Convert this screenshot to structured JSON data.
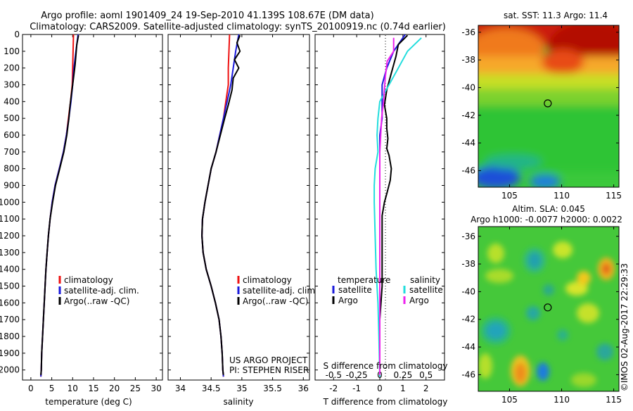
{
  "header": {
    "line1": "Argo profile: aoml 1901409_24 19-Sep-2010 41.139S 108.67E (DM data)",
    "line2": "Climatology: CARS2009. Satellite-adjusted climatology: synTS_20100919.nc (0.74d earlier)"
  },
  "depth_axis": {
    "range": [
      0,
      2060
    ],
    "ticks": [
      0,
      100,
      200,
      300,
      400,
      500,
      600,
      700,
      800,
      900,
      1000,
      1100,
      1200,
      1300,
      1400,
      1500,
      1600,
      1700,
      1800,
      1900,
      2000
    ]
  },
  "colors": {
    "red": "#ee1111",
    "blue": "#1a1adc",
    "black": "#000000",
    "cyan": "#22dddd",
    "magenta": "#ee22ee"
  },
  "chart_data": [
    {
      "type": "line",
      "id": "temperature",
      "xlabel": "temperature (deg C)",
      "xlim": [
        -2,
        31.5
      ],
      "xticks": [
        0,
        5,
        10,
        15,
        20,
        25,
        30
      ],
      "xtick_labels": [
        "0",
        "5",
        "10",
        "15",
        "20",
        "25",
        "30"
      ],
      "legend": [
        "climatology",
        "satellite-adj. clim.",
        "Argo(..raw -QC)"
      ],
      "series": [
        {
          "name": "climatology",
          "color": "red",
          "points": [
            [
              10.2,
              0
            ],
            [
              10.1,
              100
            ],
            [
              10.0,
              200
            ],
            [
              9.9,
              300
            ],
            [
              9.5,
              400
            ],
            [
              9.0,
              500
            ],
            [
              8.5,
              600
            ],
            [
              7.8,
              700
            ],
            [
              6.8,
              800
            ],
            [
              5.8,
              900
            ],
            [
              5.1,
              1000
            ],
            [
              4.6,
              1100
            ],
            [
              4.2,
              1200
            ],
            [
              3.9,
              1300
            ],
            [
              3.6,
              1400
            ],
            [
              3.4,
              1500
            ],
            [
              3.2,
              1600
            ],
            [
              3.0,
              1700
            ],
            [
              2.8,
              1800
            ],
            [
              2.6,
              1900
            ],
            [
              2.5,
              2000
            ],
            [
              2.4,
              2040
            ]
          ]
        },
        {
          "name": "satellite-adj. clim.",
          "color": "blue",
          "points": [
            [
              11.3,
              0
            ],
            [
              10.8,
              100
            ],
            [
              10.3,
              200
            ],
            [
              10.0,
              300
            ],
            [
              9.6,
              400
            ],
            [
              9.1,
              500
            ],
            [
              8.5,
              600
            ],
            [
              7.8,
              700
            ],
            [
              6.8,
              800
            ],
            [
              5.8,
              900
            ],
            [
              5.1,
              1000
            ],
            [
              4.6,
              1100
            ],
            [
              4.2,
              1200
            ],
            [
              3.9,
              1300
            ],
            [
              3.6,
              1400
            ],
            [
              3.4,
              1500
            ],
            [
              3.2,
              1600
            ],
            [
              3.0,
              1700
            ],
            [
              2.8,
              1800
            ],
            [
              2.6,
              1900
            ],
            [
              2.5,
              2000
            ],
            [
              2.4,
              2040
            ]
          ]
        },
        {
          "name": "Argo(..raw -QC)",
          "color": "black",
          "points": [
            [
              11.4,
              5
            ],
            [
              11.0,
              60
            ],
            [
              10.8,
              120
            ],
            [
              10.6,
              180
            ],
            [
              10.2,
              260
            ],
            [
              9.8,
              340
            ],
            [
              9.4,
              420
            ],
            [
              9.1,
              500
            ],
            [
              8.6,
              600
            ],
            [
              7.9,
              700
            ],
            [
              6.9,
              800
            ],
            [
              5.9,
              900
            ],
            [
              5.2,
              1000
            ],
            [
              4.6,
              1100
            ],
            [
              4.2,
              1200
            ],
            [
              3.9,
              1300
            ],
            [
              3.6,
              1400
            ],
            [
              3.4,
              1500
            ],
            [
              3.2,
              1600
            ],
            [
              3.0,
              1700
            ],
            [
              2.8,
              1800
            ],
            [
              2.6,
              1900
            ],
            [
              2.5,
              2000
            ],
            [
              2.4,
              2030
            ]
          ]
        }
      ]
    },
    {
      "type": "line",
      "id": "salinity",
      "xlabel": "salinity",
      "xlim": [
        33.8,
        36.1
      ],
      "xticks": [
        34,
        34.5,
        35,
        35.5,
        36
      ],
      "xtick_labels": [
        "34",
        "34.5",
        "35",
        "35.5",
        "36"
      ],
      "legend": [
        "climatology",
        "satellite-adj. clim.",
        "Argo(..raw -QC)"
      ],
      "annotations": [
        "US ARGO PROJECT",
        "PI: STEPHEN RISER"
      ],
      "series": [
        {
          "name": "climatology",
          "color": "red",
          "points": [
            [
              34.8,
              0
            ],
            [
              34.79,
              100
            ],
            [
              34.78,
              200
            ],
            [
              34.78,
              300
            ],
            [
              34.74,
              400
            ],
            [
              34.7,
              500
            ],
            [
              34.64,
              600
            ],
            [
              34.58,
              700
            ],
            [
              34.5,
              800
            ],
            [
              34.45,
              900
            ],
            [
              34.4,
              1000
            ],
            [
              34.36,
              1100
            ],
            [
              34.35,
              1200
            ],
            [
              34.37,
              1300
            ],
            [
              34.42,
              1400
            ],
            [
              34.5,
              1500
            ],
            [
              34.57,
              1600
            ],
            [
              34.63,
              1700
            ],
            [
              34.66,
              1800
            ],
            [
              34.68,
              1900
            ],
            [
              34.69,
              2000
            ],
            [
              34.7,
              2040
            ]
          ]
        },
        {
          "name": "satellite-adj. clim.",
          "color": "blue",
          "points": [
            [
              34.95,
              0
            ],
            [
              34.9,
              100
            ],
            [
              34.86,
              200
            ],
            [
              34.82,
              300
            ],
            [
              34.76,
              400
            ],
            [
              34.7,
              500
            ],
            [
              34.64,
              600
            ],
            [
              34.58,
              700
            ],
            [
              34.5,
              800
            ],
            [
              34.45,
              900
            ],
            [
              34.4,
              1000
            ],
            [
              34.36,
              1100
            ],
            [
              34.35,
              1200
            ],
            [
              34.37,
              1300
            ],
            [
              34.42,
              1400
            ],
            [
              34.5,
              1500
            ],
            [
              34.57,
              1600
            ],
            [
              34.63,
              1700
            ],
            [
              34.66,
              1800
            ],
            [
              34.68,
              1900
            ],
            [
              34.69,
              2000
            ],
            [
              34.7,
              2040
            ]
          ]
        },
        {
          "name": "Argo(..raw -QC)",
          "color": "black",
          "points": [
            [
              34.97,
              5
            ],
            [
              34.92,
              50
            ],
            [
              34.97,
              100
            ],
            [
              34.88,
              150
            ],
            [
              34.95,
              200
            ],
            [
              34.86,
              260
            ],
            [
              34.84,
              330
            ],
            [
              34.78,
              420
            ],
            [
              34.72,
              500
            ],
            [
              34.65,
              600
            ],
            [
              34.58,
              700
            ],
            [
              34.5,
              800
            ],
            [
              34.45,
              900
            ],
            [
              34.4,
              1000
            ],
            [
              34.36,
              1100
            ],
            [
              34.35,
              1200
            ],
            [
              34.37,
              1300
            ],
            [
              34.42,
              1400
            ],
            [
              34.5,
              1500
            ],
            [
              34.57,
              1600
            ],
            [
              34.63,
              1700
            ],
            [
              34.66,
              1800
            ],
            [
              34.68,
              1900
            ],
            [
              34.69,
              2000
            ],
            [
              34.7,
              2030
            ]
          ]
        }
      ]
    },
    {
      "type": "line",
      "id": "difference",
      "xlabel": "T difference from climatology",
      "xlabel2": "S difference from climatology",
      "xlim": [
        -2.8,
        2.8
      ],
      "xticks": [
        -2,
        -1,
        0,
        1,
        2
      ],
      "xtick_labels": [
        "-2",
        "-1",
        "0",
        "1",
        "2"
      ],
      "s_xticks": [
        -0.5,
        -0.25,
        0,
        0.25,
        0.5
      ],
      "s_xtick_labels": [
        "-0.5",
        "-0.25",
        "0",
        "0.25",
        "0.5"
      ],
      "legend_headers": [
        "temperature",
        "salinity"
      ],
      "legend_temperature": [
        "satellite",
        "Argo"
      ],
      "legend_salinity": [
        "satellite",
        "Argo"
      ],
      "series": [
        {
          "name": "temperature satellite",
          "color": "blue",
          "points": [
            [
              1.1,
              0
            ],
            [
              0.6,
              100
            ],
            [
              0.3,
              200
            ],
            [
              0.1,
              300
            ],
            [
              0.1,
              400
            ],
            [
              0.1,
              500
            ],
            [
              0.0,
              600
            ],
            [
              0.0,
              700
            ],
            [
              0.0,
              800
            ],
            [
              0.0,
              900
            ],
            [
              0.0,
              1000
            ],
            [
              0.0,
              1200
            ],
            [
              0.0,
              1500
            ],
            [
              0.0,
              1800
            ],
            [
              0.0,
              2040
            ]
          ]
        },
        {
          "name": "temperature Argo",
          "color": "black",
          "points": [
            [
              1.2,
              5
            ],
            [
              0.8,
              60
            ],
            [
              0.7,
              130
            ],
            [
              0.5,
              230
            ],
            [
              0.3,
              330
            ],
            [
              0.2,
              420
            ],
            [
              0.3,
              500
            ],
            [
              0.3,
              560
            ],
            [
              0.35,
              620
            ],
            [
              0.3,
              680
            ],
            [
              0.4,
              720
            ],
            [
              0.5,
              800
            ],
            [
              0.45,
              870
            ],
            [
              0.3,
              950
            ],
            [
              0.2,
              1000
            ],
            [
              0.1,
              1080
            ],
            [
              0.1,
              1200
            ],
            [
              0.1,
              1350
            ],
            [
              0.1,
              1500
            ],
            [
              0.0,
              1700
            ],
            [
              0.0,
              1900
            ],
            [
              0.0,
              2030
            ]
          ]
        },
        {
          "name": "salinity satellite",
          "color": "cyan",
          "points": [
            [
              0.45,
              20
            ],
            [
              0.3,
              100
            ],
            [
              0.2,
              200
            ],
            [
              0.1,
              300
            ],
            [
              0.0,
              400
            ],
            [
              -0.02,
              500
            ],
            [
              -0.03,
              600
            ],
            [
              -0.02,
              700
            ],
            [
              -0.05,
              800
            ],
            [
              -0.06,
              900
            ],
            [
              -0.06,
              1000
            ],
            [
              -0.05,
              1200
            ],
            [
              -0.04,
              1400
            ],
            [
              -0.02,
              1600
            ],
            [
              -0.01,
              1800
            ],
            [
              0.0,
              2040
            ]
          ]
        },
        {
          "name": "salinity Argo",
          "color": "magenta",
          "points": [
            [
              0.15,
              20
            ],
            [
              0.15,
              100
            ],
            [
              0.08,
              160
            ],
            [
              0.06,
              250
            ],
            [
              0.04,
              400
            ],
            [
              0.02,
              500
            ],
            [
              0.01,
              600
            ],
            [
              0.0,
              700
            ],
            [
              0.0,
              900
            ],
            [
              0.0,
              1100
            ],
            [
              0.0,
              1300
            ],
            [
              0.0,
              1500
            ],
            [
              0.0,
              1700
            ],
            [
              0.0,
              1900
            ],
            [
              0.0,
              2030
            ]
          ]
        }
      ]
    },
    {
      "type": "heatmap",
      "id": "sst-map",
      "title": "sat. SST: 11.3 Argo: 11.4",
      "xlim": [
        102,
        115.5
      ],
      "ylim": [
        -47.2,
        -35.5
      ],
      "xticks": [
        105,
        110,
        115
      ],
      "yticks": [
        -36,
        -38,
        -40,
        -42,
        -44,
        -46
      ],
      "marker": {
        "lon": 108.67,
        "lat": -41.14
      }
    },
    {
      "type": "heatmap",
      "id": "sla-map",
      "title": "Altim. SLA: 0.045",
      "subtitle": "Argo h1000: -0.0077 h2000: 0.0022",
      "xlim": [
        102,
        115.5
      ],
      "ylim": [
        -47.2,
        -35.3
      ],
      "xticks": [
        105,
        110,
        115
      ],
      "yticks": [
        -36,
        -38,
        -40,
        -42,
        -44,
        -46
      ],
      "marker": {
        "lon": 108.67,
        "lat": -41.14
      }
    }
  ],
  "footer": {
    "credit": "©IMOS 02-Aug-2017 22:29:33"
  }
}
